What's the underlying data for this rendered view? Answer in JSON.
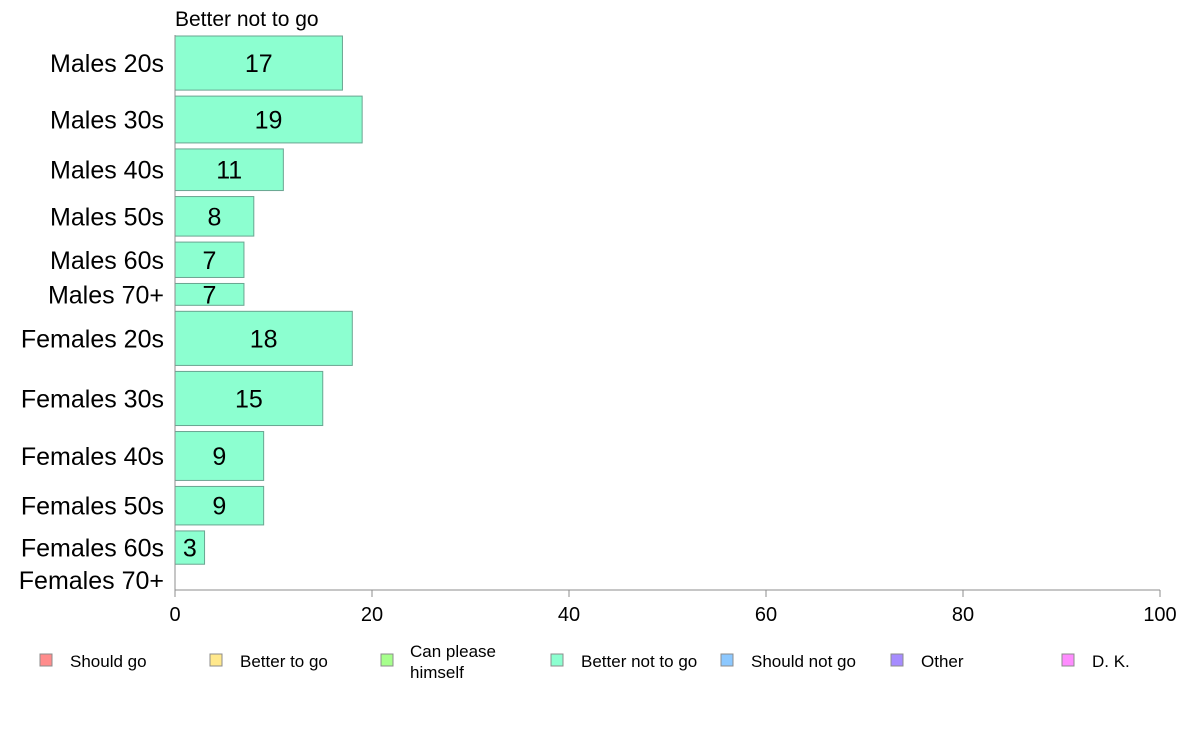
{
  "chart_data": {
    "type": "bar",
    "orientation": "horizontal",
    "title": "Better not to go",
    "categories": [
      "Males 20s",
      "Males 30s",
      "Males 40s",
      "Males 50s",
      "Males 60s",
      "Males 70+",
      "Females 20s",
      "Females 30s",
      "Females 40s",
      "Females 50s",
      "Females 60s",
      "Females 70+"
    ],
    "series": [
      {
        "name": "Better not to go",
        "color": "#8cffd0",
        "values": [
          17,
          19,
          11,
          8,
          7,
          7,
          18,
          15,
          9,
          9,
          3,
          0
        ]
      }
    ],
    "data_labels": [
      "17",
      "19",
      "11",
      "8",
      "7",
      "7",
      "18",
      "15",
      "9",
      "9",
      "3",
      ""
    ],
    "bar_weights": [
      52,
      45,
      40,
      38,
      34,
      21,
      52,
      52,
      47,
      37,
      32,
      19
    ],
    "xlim": [
      0,
      100
    ],
    "xticks": [
      0,
      20,
      40,
      60,
      80,
      100
    ],
    "xticklabels": [
      "0",
      "20",
      "40",
      "60",
      "80",
      "100"
    ],
    "grid": false,
    "legend": {
      "position": "bottom",
      "items": [
        {
          "lines": [
            "Should go"
          ],
          "color": "#ff8c8c"
        },
        {
          "lines": [
            "Better to go"
          ],
          "color": "#ffe88c"
        },
        {
          "lines": [
            "Can please",
            "himself"
          ],
          "color": "#a6ff8c"
        },
        {
          "lines": [
            "Better not to go"
          ],
          "color": "#8cffd0"
        },
        {
          "lines": [
            "Should not go"
          ],
          "color": "#8cc8ff"
        },
        {
          "lines": [
            "Other"
          ],
          "color": "#a68cff"
        },
        {
          "lines": [
            "D. K."
          ],
          "color": "#ff8cff"
        }
      ]
    }
  }
}
